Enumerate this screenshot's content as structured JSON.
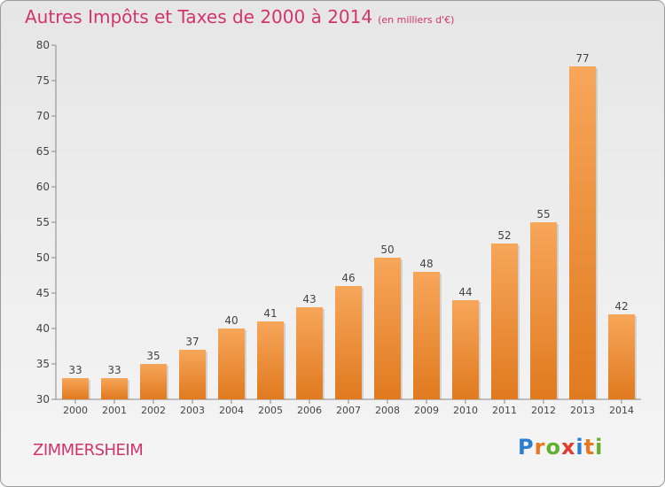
{
  "header": {
    "title": "Autres Impôts et Taxes de 2000 à 2014",
    "unit": "(en milliers d'€)"
  },
  "footer": {
    "town": "ZIMMERSHEIM",
    "brand": "Proxiti",
    "brand_letters": [
      {
        "ch": "P",
        "color": "#2a7fd4"
      },
      {
        "ch": "r",
        "color": "#e8771e"
      },
      {
        "ch": "o",
        "color": "#62b02e"
      },
      {
        "ch": "x",
        "color": "#e23a2c"
      },
      {
        "ch": "i",
        "color": "#2a7fd4"
      },
      {
        "ch": "t",
        "color": "#e8771e"
      },
      {
        "ch": "i",
        "color": "#62b02e"
      }
    ]
  },
  "colors": {
    "title": "#d1356b",
    "bar_light": "#f7a65a",
    "bar_dark": "#e07a1f"
  },
  "chart_data": {
    "type": "bar",
    "title": "Autres Impôts et Taxes de 2000 à 2014",
    "categories": [
      "2000",
      "2001",
      "2002",
      "2003",
      "2004",
      "2005",
      "2006",
      "2007",
      "2008",
      "2009",
      "2010",
      "2011",
      "2012",
      "2013",
      "2014"
    ],
    "values": [
      33,
      33,
      35,
      37,
      40,
      41,
      43,
      46,
      50,
      48,
      44,
      52,
      55,
      77,
      42
    ],
    "ylim": [
      30,
      80
    ],
    "yticks": [
      30,
      35,
      40,
      45,
      50,
      55,
      60,
      65,
      70,
      75,
      80
    ],
    "grid": false,
    "legend": "none"
  }
}
